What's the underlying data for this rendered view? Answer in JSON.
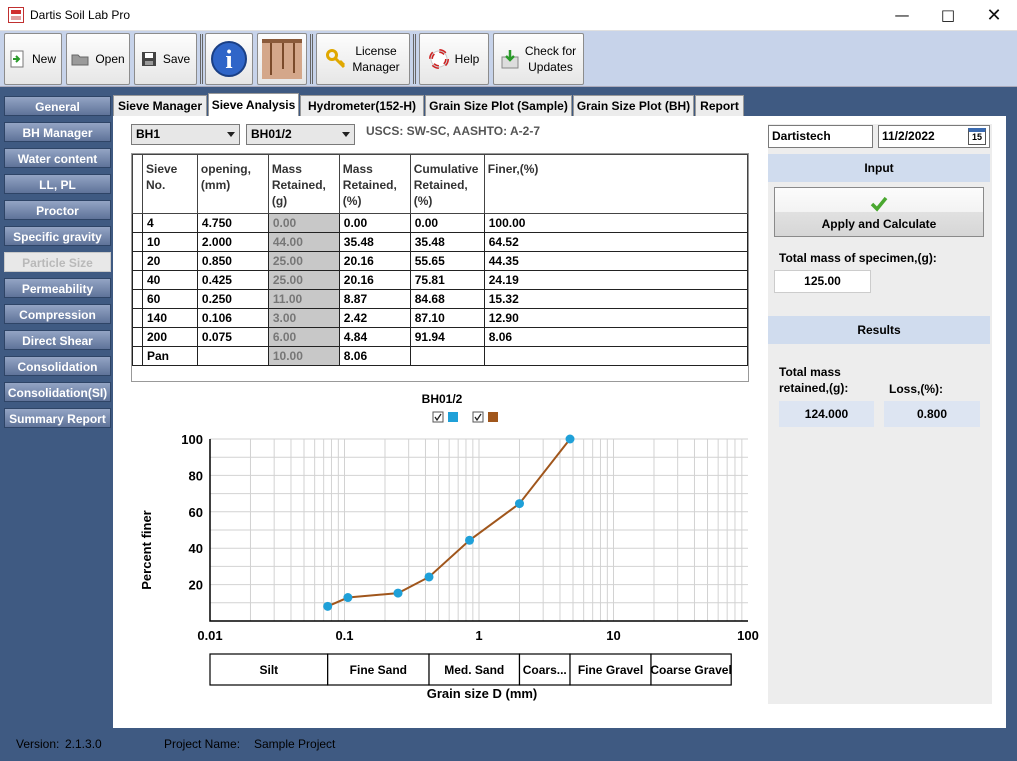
{
  "window": {
    "title": "Dartis Soil Lab Pro"
  },
  "toolbar": {
    "new": "New",
    "open": "Open",
    "save": "Save",
    "license": "License\nManager",
    "help": "Help",
    "updates": "Check for\nUpdates"
  },
  "sidebar": {
    "items": [
      "General",
      "BH Manager",
      "Water content",
      "LL, PL",
      "Proctor",
      "Specific gravity",
      "Particle Size",
      "Permeability",
      "Compression",
      "Direct Shear",
      "Consolidation",
      "Consolidation(SI)",
      "Summary Report"
    ],
    "active": "Particle Size"
  },
  "tabs": [
    "Sieve Manager",
    "Sieve Analysis",
    "Hydrometer(152-H)",
    "Grain Size Plot (Sample)",
    "Grain Size Plot (BH)",
    "Report"
  ],
  "selectors": {
    "borehole": "BH1",
    "sample": "BH01/2",
    "classification": "USCS: SW-SC, AASHTO: A-2-7"
  },
  "table": {
    "headers": [
      "Sieve\nNo.",
      "opening,\n(mm)",
      "Mass\nRetained,\n(g)",
      "Mass\nRetained,\n(%)",
      "Cumulative\nRetained,\n(%)",
      "Finer,(%)"
    ],
    "rows": [
      [
        "4",
        "4.750",
        "0.00",
        "0.00",
        "0.00",
        "100.00"
      ],
      [
        "10",
        "2.000",
        "44.00",
        "35.48",
        "35.48",
        "64.52"
      ],
      [
        "20",
        "0.850",
        "25.00",
        "20.16",
        "55.65",
        "44.35"
      ],
      [
        "40",
        "0.425",
        "25.00",
        "20.16",
        "75.81",
        "24.19"
      ],
      [
        "60",
        "0.250",
        "11.00",
        "8.87",
        "84.68",
        "15.32"
      ],
      [
        "140",
        "0.106",
        "3.00",
        "2.42",
        "87.10",
        "12.90"
      ],
      [
        "200",
        "0.075",
        "6.00",
        "4.84",
        "91.94",
        "8.06"
      ],
      [
        "Pan",
        "",
        "10.00",
        "8.06",
        "",
        ""
      ]
    ]
  },
  "chart_data": {
    "type": "line",
    "title": "BH01/2",
    "xlabel": "Grain size D (mm)",
    "ylabel": "Percent finer",
    "xscale": "log",
    "xlim": [
      0.01,
      100
    ],
    "ylim": [
      0,
      100
    ],
    "xticks": [
      "0.01",
      "0.1",
      "1",
      "10",
      "100"
    ],
    "yticks": [
      "20",
      "40",
      "60",
      "80",
      "100"
    ],
    "grid": true,
    "legend": "top-center",
    "series": [
      {
        "color": "#1fa0d8",
        "x": [
          0.075,
          0.106,
          0.25,
          0.425,
          0.85,
          2.0,
          4.75
        ],
        "y": [
          8.06,
          12.9,
          15.32,
          24.19,
          44.35,
          64.52,
          100.0
        ]
      },
      {
        "color": "#a0561c",
        "x": [
          0.075,
          0.106,
          0.25,
          0.425,
          0.85,
          2.0,
          4.75
        ],
        "y": [
          8.06,
          12.9,
          15.32,
          24.19,
          44.35,
          64.52,
          100.0
        ]
      }
    ],
    "soil_bands": [
      {
        "label": "Silt",
        "from": 0.01,
        "to": 0.075
      },
      {
        "label": "Fine Sand",
        "from": 0.075,
        "to": 0.425
      },
      {
        "label": "Med. Sand",
        "from": 0.425,
        "to": 2.0
      },
      {
        "label": "Coars...",
        "from": 2.0,
        "to": 4.75
      },
      {
        "label": "Fine Gravel",
        "from": 4.75,
        "to": 19
      },
      {
        "label": "Coarse Gravel",
        "from": 19,
        "to": 75
      }
    ]
  },
  "right": {
    "user": "Dartistech",
    "date": "11/2/2022",
    "date_icon": "15",
    "input_header": "Input",
    "apply": "Apply and Calculate",
    "total_mass_label": "Total mass of specimen,(g):",
    "total_mass": "125.00",
    "results_header": "Results",
    "retained_label": "Total mass\nretained,(g):",
    "retained": "124.000",
    "loss_label": "Loss,(%):",
    "loss": "0.800"
  },
  "status": {
    "version_label": "Version:",
    "version": "2.1.3.0",
    "project_label": "Project Name:",
    "project": "Sample Project"
  }
}
